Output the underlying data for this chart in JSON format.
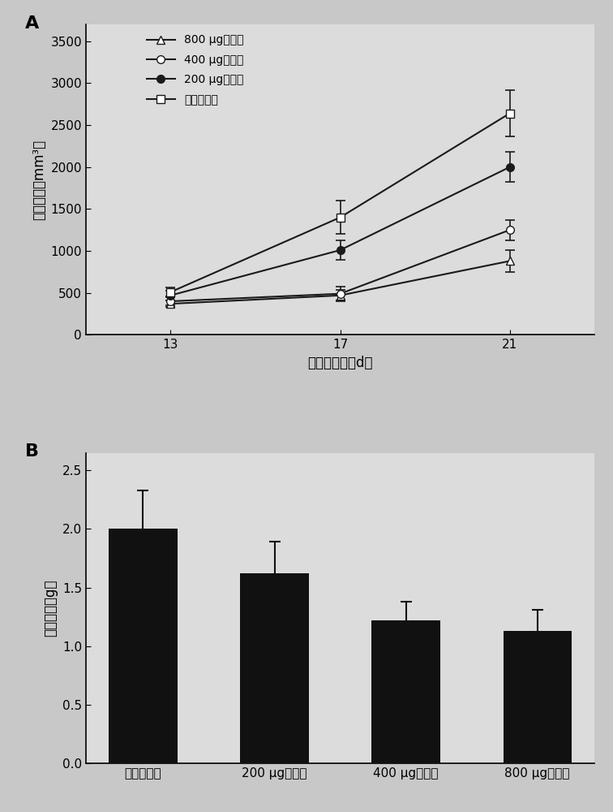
{
  "panel_A": {
    "x": [
      13,
      17,
      21
    ],
    "series": [
      {
        "label": "800 μg单抗组",
        "y": [
          370,
          470,
          880
        ],
        "yerr": [
          40,
          70,
          130
        ],
        "marker": "^",
        "color": "#1a1a1a",
        "markersize": 7,
        "markerfacecolor": "white"
      },
      {
        "label": "400 μg单抗组",
        "y": [
          400,
          490,
          1250
        ],
        "yerr": [
          50,
          80,
          120
        ],
        "marker": "o",
        "color": "#1a1a1a",
        "markersize": 7,
        "markerfacecolor": "white"
      },
      {
        "label": "200 μg单抗组",
        "y": [
          470,
          1010,
          2000
        ],
        "yerr": [
          60,
          120,
          180
        ],
        "marker": "o",
        "color": "#1a1a1a",
        "markersize": 7,
        "markerfacecolor": "#1a1a1a"
      },
      {
        "label": "生理盐水组",
        "y": [
          510,
          1400,
          2640
        ],
        "yerr": [
          55,
          200,
          280
        ],
        "marker": "s",
        "color": "#1a1a1a",
        "markersize": 7,
        "markerfacecolor": "white"
      }
    ],
    "xlabel": "接种后天数（d）",
    "ylabel": "肿瘾体积（mm³）",
    "yticks": [
      0,
      500,
      1000,
      1500,
      2000,
      2500,
      3000,
      3500
    ],
    "xticks": [
      13,
      17,
      21
    ],
    "ylim": [
      0,
      3700
    ],
    "panel_label": "A"
  },
  "panel_B": {
    "categories": [
      "生理盐水组",
      "200 μg单抗组",
      "400 μg单抗组",
      "800 μg单抗组"
    ],
    "values": [
      2.0,
      1.62,
      1.22,
      1.13
    ],
    "yerr": [
      0.33,
      0.27,
      0.16,
      0.18
    ],
    "bar_color": "#111111",
    "ylabel": "肿瘾重量（g）",
    "ylim": [
      0,
      2.65
    ],
    "yticks": [
      0.0,
      0.5,
      1.0,
      1.5,
      2.0,
      2.5
    ],
    "panel_label": "B"
  },
  "fig_bg": "#c8c8c8",
  "ax_bg": "#dcdcdc"
}
